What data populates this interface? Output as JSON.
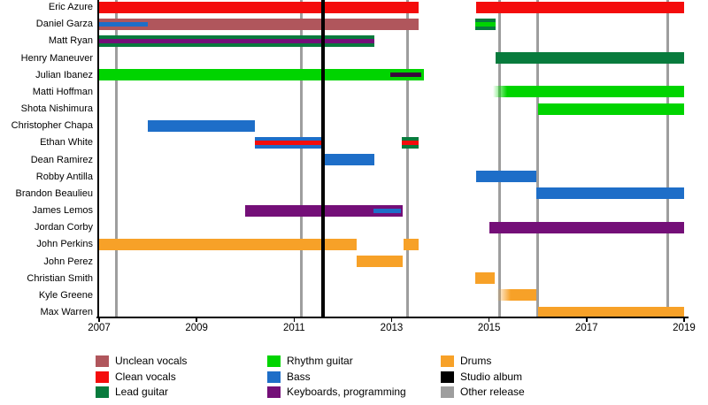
{
  "chart_data": {
    "type": "timeline",
    "x_axis": {
      "min": 2007,
      "max": 2019,
      "tick_years": [
        2007,
        2009,
        2011,
        2013,
        2015,
        2017,
        2019
      ]
    },
    "legend": [
      {
        "id": "unclean-vocals",
        "label": "Unclean vocals",
        "color": "#b0565c"
      },
      {
        "id": "clean-vocals",
        "label": "Clean vocals",
        "color": "#f40c0c"
      },
      {
        "id": "lead-guitar",
        "label": "Lead guitar",
        "color": "#087b3d"
      },
      {
        "id": "rhythm-guitar",
        "label": "Rhythm guitar",
        "color": "#00d400"
      },
      {
        "id": "bass",
        "label": "Bass",
        "color": "#1e6ec8"
      },
      {
        "id": "keyboards-programming",
        "label": "Keyboards, programming",
        "color": "#740f78"
      },
      {
        "id": "drums",
        "label": "Drums",
        "color": "#f7a128"
      },
      {
        "id": "studio-album",
        "label": "Studio album",
        "color": "#000000"
      },
      {
        "id": "other-release",
        "label": "Other release",
        "color": "#9e9e9e"
      }
    ],
    "legend_columns": [
      [
        "unclean-vocals",
        "clean-vocals",
        "lead-guitar"
      ],
      [
        "rhythm-guitar",
        "bass",
        "keyboards-programming"
      ],
      [
        "drums",
        "studio-album",
        "other-release"
      ]
    ],
    "members": [
      {
        "name": "Eric Azure",
        "bars": [
          {
            "role": "clean-vocals",
            "start": 2007.0,
            "end": 2013.55
          },
          {
            "role": "clean-vocals",
            "start": 2014.73,
            "end": 2019.0
          }
        ]
      },
      {
        "name": "Daniel Garza",
        "bars": [
          {
            "role": "unclean-vocals",
            "start": 2007.0,
            "end": 2013.55,
            "overlays": [
              {
                "role": "bass",
                "start": 2007.0,
                "end": 2008.0
              }
            ]
          },
          {
            "role": "lead-guitar",
            "start": 2014.71,
            "end": 2015.13,
            "overlays": [
              {
                "role": "rhythm-guitar",
                "start": 2014.71,
                "end": 2015.13
              }
            ]
          }
        ]
      },
      {
        "name": "Matt Ryan",
        "bars": [
          {
            "role": "lead-guitar",
            "start": 2007.0,
            "end": 2012.65,
            "overlays": [
              {
                "role": "keyboards-programming",
                "start": 2007.0,
                "end": 2012.65
              }
            ]
          }
        ]
      },
      {
        "name": "Henry Maneuver",
        "bars": [
          {
            "role": "lead-guitar",
            "start": 2015.13,
            "end": 2019.0
          }
        ]
      },
      {
        "name": "Julian Ibanez",
        "bars": [
          {
            "role": "rhythm-guitar",
            "start": 2007.0,
            "end": 2013.67,
            "overlays": [
              {
                "role": "keyboards-programming",
                "start": 2012.97,
                "end": 2013.6,
                "dim": true
              }
            ]
          }
        ]
      },
      {
        "name": "Matti Hoffman",
        "bars": [
          {
            "role": "rhythm-guitar",
            "start": 2015.08,
            "end": 2019.0,
            "fade_left": true
          }
        ]
      },
      {
        "name": "Shota Nishimura",
        "bars": [
          {
            "role": "rhythm-guitar",
            "start": 2016.0,
            "end": 2019.0
          }
        ]
      },
      {
        "name": "Christopher Chapa",
        "bars": [
          {
            "role": "bass",
            "start": 2008.0,
            "end": 2010.2
          }
        ]
      },
      {
        "name": "Ethan White",
        "bars": [
          {
            "role": "bass",
            "start": 2010.2,
            "end": 2011.6,
            "overlays": [
              {
                "role": "clean-vocals",
                "start": 2010.2,
                "end": 2011.6
              }
            ]
          },
          {
            "role": "lead-guitar",
            "start": 2013.21,
            "end": 2013.55,
            "overlays": [
              {
                "role": "clean-vocals",
                "start": 2013.21,
                "end": 2013.55
              }
            ]
          }
        ]
      },
      {
        "name": "Dean Ramirez",
        "bars": [
          {
            "role": "bass",
            "start": 2011.6,
            "end": 2012.65
          }
        ]
      },
      {
        "name": "Robby Antilla",
        "bars": [
          {
            "role": "bass",
            "start": 2014.73,
            "end": 2015.97
          }
        ]
      },
      {
        "name": "Brandon Beaulieu",
        "bars": [
          {
            "role": "bass",
            "start": 2015.97,
            "end": 2019.0
          }
        ]
      },
      {
        "name": "James Lemos",
        "bars": [
          {
            "role": "keyboards-programming",
            "start": 2010.0,
            "end": 2013.23,
            "overlays": [
              {
                "role": "bass",
                "start": 2012.63,
                "end": 2013.19
              }
            ]
          }
        ]
      },
      {
        "name": "Jordan Corby",
        "bars": [
          {
            "role": "keyboards-programming",
            "start": 2015.0,
            "end": 2019.0
          }
        ]
      },
      {
        "name": "John Perkins",
        "bars": [
          {
            "role": "drums",
            "start": 2007.0,
            "end": 2012.28
          },
          {
            "role": "drums",
            "start": 2013.25,
            "end": 2013.55
          }
        ]
      },
      {
        "name": "John Perez",
        "bars": [
          {
            "role": "drums",
            "start": 2012.28,
            "end": 2013.23
          }
        ]
      },
      {
        "name": "Christian Smith",
        "bars": [
          {
            "role": "drums",
            "start": 2014.71,
            "end": 2015.11
          }
        ]
      },
      {
        "name": "Kyle Greene",
        "bars": [
          {
            "role": "drums",
            "start": 2015.15,
            "end": 2015.97,
            "fade_left": true
          }
        ]
      },
      {
        "name": "Max Warren",
        "bars": [
          {
            "role": "drums",
            "start": 2016.0,
            "end": 2019.0
          }
        ]
      }
    ],
    "releases": {
      "studio_albums": [
        2011.59
      ],
      "other_releases": [
        2007.36,
        2011.14,
        2013.32,
        2015.22,
        2016.0,
        2018.67
      ]
    }
  }
}
